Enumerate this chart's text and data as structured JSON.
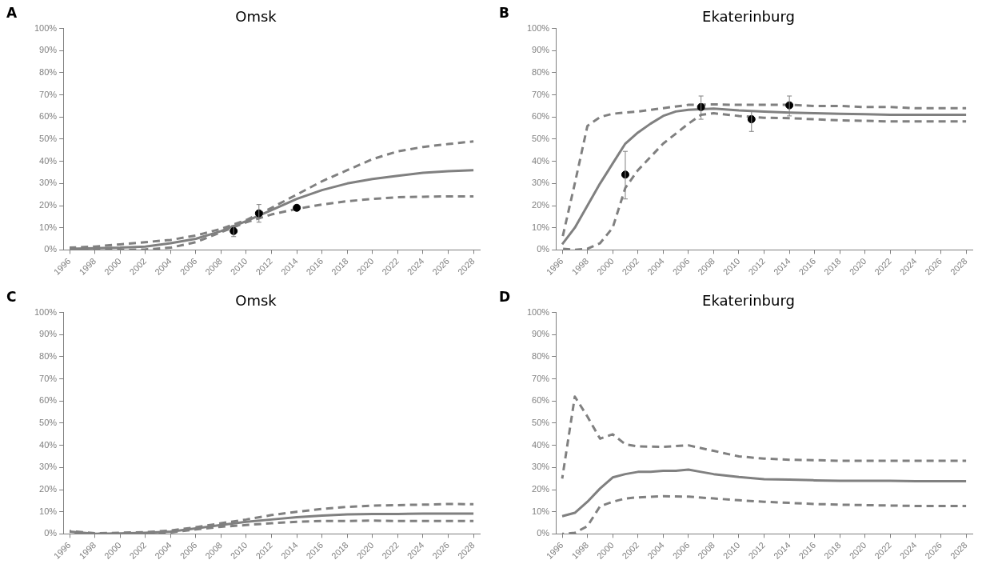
{
  "chart_data": [
    {
      "type": "line",
      "title": "Omsk",
      "annotations": [
        "A"
      ],
      "xlim": [
        1995.5,
        2028.5
      ],
      "xticks": [
        1996,
        1998,
        2000,
        2002,
        2004,
        2006,
        2008,
        2010,
        2012,
        2014,
        2016,
        2018,
        2020,
        2022,
        2024,
        2026,
        2028
      ],
      "ylim": [
        0,
        100
      ],
      "yticks": [
        {
          "value": 0,
          "label": "0%"
        },
        {
          "value": 10,
          "label": "10%"
        },
        {
          "value": 20,
          "label": "20%"
        },
        {
          "value": 30,
          "label": "30%"
        },
        {
          "value": 40,
          "label": "40%"
        },
        {
          "value": 50,
          "label": "50%"
        },
        {
          "value": 60,
          "label": "60%"
        },
        {
          "value": 70,
          "label": "70%"
        },
        {
          "value": 80,
          "label": "80%"
        },
        {
          "value": 90,
          "label": "90%"
        },
        {
          "value": 100,
          "label": "100%"
        }
      ],
      "series": [
        {
          "line_style": "solid",
          "marker": "none",
          "color": "#808080",
          "x": [
            1996,
            1998,
            2000,
            2002,
            2004,
            2006,
            2008,
            2010,
            2012,
            2014,
            2016,
            2018,
            2020,
            2022,
            2024,
            2026,
            2028
          ],
          "values": [
            0.5,
            0.8,
            1,
            1.5,
            3,
            5,
            8.5,
            13,
            18,
            23,
            27,
            30,
            32,
            33.5,
            34.8,
            35.5,
            36
          ]
        },
        {
          "line_style": "dashed",
          "marker": "none",
          "color": "#808080",
          "x": [
            1996,
            1998,
            2000,
            2002,
            2004,
            2006,
            2008,
            2010,
            2012,
            2014,
            2016,
            2018,
            2020,
            2022,
            2024,
            2026,
            2028
          ],
          "values": [
            1,
            1.5,
            2.5,
            3.5,
            4.5,
            6.5,
            9.5,
            13.5,
            19,
            25,
            31,
            36,
            41,
            44.5,
            46.5,
            47.8,
            49
          ]
        },
        {
          "line_style": "dashed",
          "marker": "none",
          "color": "#808080",
          "x": [
            1996,
            1998,
            2000,
            2002,
            2004,
            2006,
            2008,
            2010,
            2012,
            2014,
            2016,
            2018,
            2020,
            2022,
            2024,
            2026,
            2028
          ],
          "values": [
            0.5,
            0.3,
            0,
            0.2,
            1,
            3.5,
            8,
            12.5,
            16,
            18.5,
            20.5,
            22,
            23,
            23.8,
            24,
            24.2,
            24.2
          ]
        },
        {
          "type": "scatter",
          "marker": "circle",
          "color": "#000000",
          "x": [
            2009,
            2011,
            2014
          ],
          "values": [
            8.5,
            16.5,
            19
          ],
          "errors": [
            [
              6,
              11
            ],
            [
              12.5,
              20.5
            ],
            null
          ]
        }
      ]
    },
    {
      "type": "line",
      "title": "Ekaterinburg",
      "annotations": [
        "B"
      ],
      "xlim": [
        1995.5,
        2028.5
      ],
      "xticks": [
        1996,
        1998,
        2000,
        2002,
        2004,
        2006,
        2008,
        2010,
        2012,
        2014,
        2016,
        2018,
        2020,
        2022,
        2024,
        2026,
        2028
      ],
      "ylim": [
        0,
        100
      ],
      "yticks": [
        {
          "value": 0,
          "label": "0%"
        },
        {
          "value": 10,
          "label": "10%"
        },
        {
          "value": 20,
          "label": "20%"
        },
        {
          "value": 30,
          "label": "30%"
        },
        {
          "value": 40,
          "label": "40%"
        },
        {
          "value": 50,
          "label": "50%"
        },
        {
          "value": 60,
          "label": "60%"
        },
        {
          "value": 70,
          "label": "70%"
        },
        {
          "value": 80,
          "label": "80%"
        },
        {
          "value": 90,
          "label": "90%"
        },
        {
          "value": 100,
          "label": "100%"
        }
      ],
      "series": [
        {
          "line_style": "solid",
          "marker": "none",
          "color": "#808080",
          "x": [
            1996,
            1997,
            1998,
            1999,
            2000,
            2001,
            2002,
            2003,
            2004,
            2005,
            2006,
            2008,
            2010,
            2012,
            2014,
            2016,
            2018,
            2020,
            2022,
            2024,
            2026,
            2028
          ],
          "values": [
            2.5,
            10,
            20,
            30,
            39,
            48,
            53,
            57,
            60.5,
            62.5,
            63.3,
            63.8,
            63,
            62.5,
            62,
            61.7,
            61.5,
            61.3,
            61,
            61,
            61,
            61
          ]
        },
        {
          "line_style": "dashed",
          "marker": "none",
          "color": "#808080",
          "x": [
            1996,
            1997,
            1998,
            1999,
            2000,
            2002,
            2004,
            2006,
            2008,
            2010,
            2012,
            2014,
            2016,
            2018,
            2020,
            2022,
            2024,
            2026,
            2028
          ],
          "values": [
            5,
            30,
            56,
            60,
            61.5,
            62.5,
            64,
            65.5,
            65.7,
            65.5,
            65.5,
            65.5,
            65,
            65,
            64.5,
            64.5,
            64,
            64,
            64
          ]
        },
        {
          "line_style": "dashed",
          "marker": "none",
          "color": "#808080",
          "x": [
            1996,
            1997,
            1998,
            1999,
            2000,
            2001,
            2002,
            2004,
            2006,
            2007,
            2008,
            2010,
            2012,
            2014,
            2016,
            2018,
            2020,
            2022,
            2024,
            2026,
            2028
          ],
          "values": [
            0.5,
            0,
            0.5,
            3,
            10,
            28,
            36,
            48,
            57,
            61,
            61.7,
            60.5,
            59.7,
            59.5,
            59,
            58.5,
            58.3,
            58,
            58,
            58,
            58
          ]
        },
        {
          "type": "scatter",
          "marker": "circle",
          "color": "#000000",
          "x": [
            2001,
            2007,
            2011,
            2014
          ],
          "values": [
            34,
            64.5,
            59,
            65.3
          ],
          "errors": [
            [
              23,
              44.5
            ],
            [
              59,
              69.5
            ],
            [
              53.5,
              62.5
            ],
            [
              60.5,
              69.5
            ]
          ]
        }
      ]
    },
    {
      "type": "line",
      "title": "Omsk",
      "annotations": [
        "C"
      ],
      "xlim": [
        1995.5,
        2028.5
      ],
      "xticks": [
        1996,
        1998,
        2000,
        2002,
        2004,
        2006,
        2008,
        2010,
        2012,
        2014,
        2016,
        2018,
        2020,
        2022,
        2024,
        2026,
        2028
      ],
      "ylim": [
        0,
        100
      ],
      "yticks": [
        {
          "value": 0,
          "label": "0%"
        },
        {
          "value": 10,
          "label": "10%"
        },
        {
          "value": 20,
          "label": "20%"
        },
        {
          "value": 30,
          "label": "30%"
        },
        {
          "value": 40,
          "label": "40%"
        },
        {
          "value": 50,
          "label": "50%"
        },
        {
          "value": 60,
          "label": "60%"
        },
        {
          "value": 70,
          "label": "70%"
        },
        {
          "value": 80,
          "label": "80%"
        },
        {
          "value": 90,
          "label": "90%"
        },
        {
          "value": 100,
          "label": "100%"
        }
      ],
      "series": [
        {
          "line_style": "solid",
          "marker": "none",
          "color": "#808080",
          "x": [
            1996,
            1998,
            2000,
            2002,
            2004,
            2006,
            2008,
            2010,
            2012,
            2014,
            2016,
            2018,
            2020,
            2022,
            2024,
            2026,
            2028
          ],
          "values": [
            1,
            0,
            0.2,
            0.5,
            1,
            2.5,
            4,
            5.5,
            6.5,
            7.5,
            8.3,
            8.8,
            9,
            9,
            9.2,
            9.2,
            9.2
          ]
        },
        {
          "line_style": "dashed",
          "marker": "none",
          "color": "#808080",
          "x": [
            1996,
            1998,
            2000,
            2002,
            2004,
            2006,
            2008,
            2010,
            2012,
            2014,
            2016,
            2018,
            2020,
            2022,
            2024,
            2026,
            2028
          ],
          "values": [
            1.3,
            0.3,
            0.5,
            0.8,
            1.5,
            3,
            4.8,
            6.5,
            8.5,
            10,
            11.3,
            12.2,
            12.8,
            13,
            13.2,
            13.5,
            13.4
          ]
        },
        {
          "line_style": "dashed",
          "marker": "none",
          "color": "#808080",
          "x": [
            1996,
            1998,
            2000,
            2002,
            2004,
            2006,
            2008,
            2010,
            2012,
            2014,
            2016,
            2018,
            2020,
            2022,
            2024,
            2026,
            2028
          ],
          "values": [
            0.5,
            0,
            0,
            0.2,
            0.7,
            2,
            3.2,
            4,
            4.8,
            5.5,
            5.8,
            5.8,
            6,
            5.8,
            5.8,
            5.8,
            5.8
          ]
        }
      ]
    },
    {
      "type": "line",
      "title": "Ekaterinburg",
      "annotations": [
        "D"
      ],
      "xlim": [
        1995.5,
        2028.5
      ],
      "xticks": [
        1996,
        1998,
        2000,
        2002,
        2004,
        2006,
        2008,
        2010,
        2012,
        2014,
        2016,
        2018,
        2020,
        2022,
        2024,
        2026,
        2028
      ],
      "ylim": [
        0,
        100
      ],
      "yticks": [
        {
          "value": 0,
          "label": "0%"
        },
        {
          "value": 10,
          "label": "10%"
        },
        {
          "value": 20,
          "label": "20%"
        },
        {
          "value": 30,
          "label": "30%"
        },
        {
          "value": 40,
          "label": "40%"
        },
        {
          "value": 50,
          "label": "50%"
        },
        {
          "value": 60,
          "label": "60%"
        },
        {
          "value": 70,
          "label": "70%"
        },
        {
          "value": 80,
          "label": "80%"
        },
        {
          "value": 90,
          "label": "90%"
        },
        {
          "value": 100,
          "label": "100%"
        }
      ],
      "series": [
        {
          "line_style": "solid",
          "marker": "none",
          "color": "#808080",
          "x": [
            1996,
            1997,
            1998,
            1999,
            2000,
            2001,
            2002,
            2003,
            2004,
            2005,
            2006,
            2007,
            2008,
            2010,
            2012,
            2014,
            2016,
            2018,
            2020,
            2022,
            2024,
            2026,
            2028
          ],
          "values": [
            8,
            9.5,
            14.5,
            20.5,
            25.5,
            27,
            28,
            28,
            28.5,
            28.5,
            29,
            28,
            27,
            25.7,
            24.7,
            24.5,
            24.2,
            24,
            24,
            24,
            23.8,
            23.8,
            23.8
          ]
        },
        {
          "line_style": "dashed",
          "marker": "none",
          "color": "#808080",
          "x": [
            1996,
            1997,
            1998,
            1999,
            2000,
            2001,
            2002,
            2004,
            2006,
            2008,
            2010,
            2012,
            2014,
            2016,
            2018,
            2020,
            2022,
            2024,
            2026,
            2028
          ],
          "values": [
            25,
            62,
            53,
            43,
            45,
            40.5,
            39.5,
            39.3,
            40,
            37.5,
            35,
            34,
            33.5,
            33.3,
            33,
            33,
            33,
            33,
            33,
            33
          ]
        },
        {
          "line_style": "dashed",
          "marker": "none",
          "color": "#808080",
          "x": [
            1996,
            1997,
            1998,
            1999,
            2000,
            2001,
            2002,
            2004,
            2006,
            2008,
            2010,
            2012,
            2014,
            2016,
            2018,
            2020,
            2022,
            2024,
            2026,
            2028
          ],
          "values": [
            0,
            0.5,
            3.5,
            12.5,
            14.5,
            16,
            16.5,
            17,
            16.8,
            16,
            15.2,
            14.5,
            14,
            13.5,
            13.2,
            13,
            12.8,
            12.6,
            12.6,
            12.6
          ]
        }
      ]
    }
  ]
}
